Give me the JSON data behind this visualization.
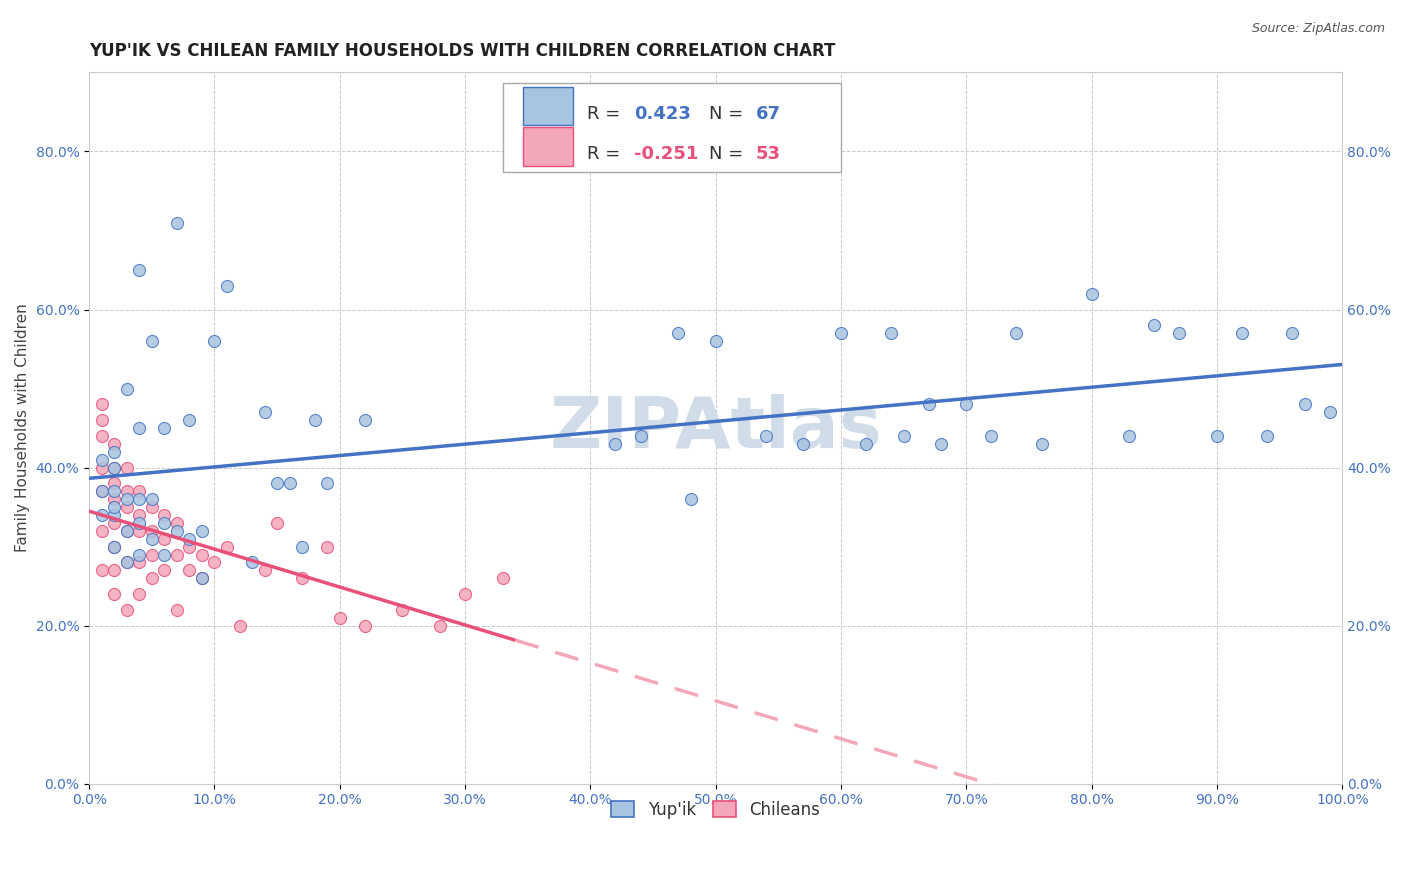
{
  "title": "YUP'IK VS CHILEAN FAMILY HOUSEHOLDS WITH CHILDREN CORRELATION CHART",
  "source": "Source: ZipAtlas.com",
  "ylabel": "Family Households with Children",
  "watermark": "ZIPAtlas",
  "yupik_color": "#a8c4e0",
  "chilean_color": "#f4a7b9",
  "yupik_line_color": "#4472c4",
  "chilean_line_color": "#e8507a",
  "chilean_dashed_color": "#f4a7b9",
  "background_color": "#ffffff",
  "grid_color": "#bbbbbb",
  "xlim": [
    0.0,
    1.0
  ],
  "ylim": [
    0.0,
    0.9
  ],
  "xticks": [
    0.0,
    0.1,
    0.2,
    0.3,
    0.4,
    0.5,
    0.6,
    0.7,
    0.8,
    0.9,
    1.0
  ],
  "yticks": [
    0.0,
    0.2,
    0.4,
    0.6,
    0.8
  ],
  "title_fontsize": 12,
  "axis_label_fontsize": 11,
  "tick_fontsize": 10,
  "legend_fontsize": 13,
  "watermark_fontsize": 52,
  "watermark_color": "#d0dce8",
  "marker_size": 75,
  "line_width": 2.5,
  "yupik_x": [
    0.01,
    0.01,
    0.01,
    0.02,
    0.02,
    0.02,
    0.02,
    0.02,
    0.02,
    0.03,
    0.03,
    0.03,
    0.03,
    0.04,
    0.04,
    0.04,
    0.04,
    0.04,
    0.05,
    0.05,
    0.05,
    0.06,
    0.06,
    0.06,
    0.07,
    0.07,
    0.08,
    0.08,
    0.09,
    0.09,
    0.1,
    0.11,
    0.13,
    0.14,
    0.15,
    0.16,
    0.17,
    0.18,
    0.19,
    0.22,
    0.42,
    0.44,
    0.47,
    0.48,
    0.5,
    0.54,
    0.57,
    0.6,
    0.62,
    0.64,
    0.65,
    0.67,
    0.68,
    0.7,
    0.72,
    0.74,
    0.76,
    0.8,
    0.83,
    0.85,
    0.87,
    0.9,
    0.92,
    0.94,
    0.96,
    0.97,
    0.99
  ],
  "yupik_y": [
    0.34,
    0.37,
    0.41,
    0.3,
    0.34,
    0.35,
    0.37,
    0.4,
    0.42,
    0.28,
    0.32,
    0.36,
    0.5,
    0.29,
    0.33,
    0.36,
    0.45,
    0.65,
    0.31,
    0.36,
    0.56,
    0.29,
    0.33,
    0.45,
    0.32,
    0.71,
    0.31,
    0.46,
    0.26,
    0.32,
    0.56,
    0.63,
    0.28,
    0.47,
    0.38,
    0.38,
    0.3,
    0.46,
    0.38,
    0.46,
    0.43,
    0.44,
    0.57,
    0.36,
    0.56,
    0.44,
    0.43,
    0.57,
    0.43,
    0.57,
    0.44,
    0.48,
    0.43,
    0.48,
    0.44,
    0.57,
    0.43,
    0.62,
    0.44,
    0.58,
    0.57,
    0.44,
    0.57,
    0.44,
    0.57,
    0.48,
    0.47
  ],
  "chilean_x": [
    0.01,
    0.01,
    0.01,
    0.01,
    0.01,
    0.01,
    0.01,
    0.02,
    0.02,
    0.02,
    0.02,
    0.02,
    0.02,
    0.02,
    0.02,
    0.03,
    0.03,
    0.03,
    0.03,
    0.03,
    0.03,
    0.04,
    0.04,
    0.04,
    0.04,
    0.04,
    0.05,
    0.05,
    0.05,
    0.05,
    0.06,
    0.06,
    0.06,
    0.07,
    0.07,
    0.07,
    0.08,
    0.08,
    0.09,
    0.09,
    0.1,
    0.11,
    0.12,
    0.14,
    0.15,
    0.17,
    0.19,
    0.2,
    0.22,
    0.25,
    0.28,
    0.3,
    0.33
  ],
  "chilean_y": [
    0.48,
    0.46,
    0.44,
    0.4,
    0.37,
    0.32,
    0.27,
    0.43,
    0.4,
    0.38,
    0.36,
    0.33,
    0.3,
    0.27,
    0.24,
    0.4,
    0.37,
    0.35,
    0.32,
    0.28,
    0.22,
    0.37,
    0.34,
    0.32,
    0.28,
    0.24,
    0.35,
    0.32,
    0.29,
    0.26,
    0.34,
    0.31,
    0.27,
    0.33,
    0.29,
    0.22,
    0.3,
    0.27,
    0.29,
    0.26,
    0.28,
    0.3,
    0.2,
    0.27,
    0.33,
    0.26,
    0.3,
    0.21,
    0.2,
    0.22,
    0.2,
    0.24,
    0.26
  ]
}
